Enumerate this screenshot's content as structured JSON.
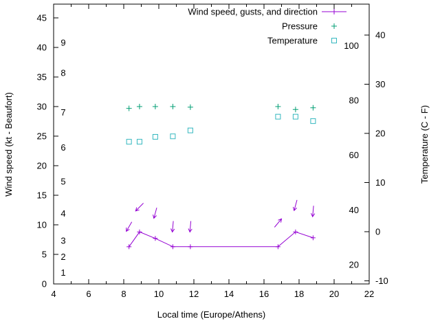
{
  "chart_data": {
    "type": "line",
    "title": "",
    "xlabel": "Local time (Europe/Athens)",
    "ylabel_left": "Wind speed (kt - Beaufort)",
    "ylabel_right": "Temperature (C - F)",
    "x_range": [
      4,
      22
    ],
    "x_ticks": [
      4,
      6,
      8,
      10,
      12,
      14,
      16,
      18,
      20,
      22
    ],
    "y_left_range": [
      0,
      47
    ],
    "y_left_ticks": [
      0,
      5,
      10,
      15,
      20,
      25,
      30,
      35,
      40,
      45
    ],
    "beaufort_labels": [
      {
        "label": "1",
        "kt": 1.9
      },
      {
        "label": "2",
        "kt": 4.6
      },
      {
        "label": "3",
        "kt": 7.3
      },
      {
        "label": "4",
        "kt": 11.9
      },
      {
        "label": "5",
        "kt": 17.3
      },
      {
        "label": "6",
        "kt": 23.1
      },
      {
        "label": "7",
        "kt": 29.0
      },
      {
        "label": "8",
        "kt": 35.7
      },
      {
        "label": "9",
        "kt": 40.8
      }
    ],
    "y_right_range_c": [
      -10,
      40
    ],
    "y_right_ticks_c": [
      -10,
      0,
      10,
      20,
      30,
      40
    ],
    "fahrenheit_labels": [
      {
        "label": "20",
        "c": -6.7
      },
      {
        "label": "40",
        "c": 4.4
      },
      {
        "label": "60",
        "c": 15.6
      },
      {
        "label": "80",
        "c": 26.7
      },
      {
        "label": "100",
        "c": 37.8
      }
    ],
    "colors": {
      "wind": "#9400d3",
      "pressure": "#009e73",
      "temperature": "#33b7bf",
      "axis": "#000000"
    },
    "legend": [
      {
        "label": "Wind speed, gusts, and direction",
        "color": "#9400d3",
        "marker": "plus-line"
      },
      {
        "label": "Pressure",
        "color": "#009e73",
        "marker": "plus"
      },
      {
        "label": "Temperature",
        "color": "#33b7bf",
        "marker": "square"
      }
    ],
    "series": {
      "wind": {
        "x": [
          8.3,
          8.9,
          9.8,
          10.8,
          11.8,
          16.8,
          17.8,
          18.8
        ],
        "kt": [
          6.3,
          8.8,
          7.7,
          6.3,
          6.3,
          6.3,
          8.8,
          7.8
        ]
      },
      "wind_arrows": [
        {
          "x": 8.3,
          "kt": 9.7,
          "dir_deg": 210
        },
        {
          "x": 8.9,
          "kt": 13.0,
          "dir_deg": 225
        },
        {
          "x": 9.8,
          "kt": 12.0,
          "dir_deg": 195
        },
        {
          "x": 10.8,
          "kt": 9.7,
          "dir_deg": 185
        },
        {
          "x": 11.8,
          "kt": 9.7,
          "dir_deg": 185
        },
        {
          "x": 16.8,
          "kt": 10.3,
          "dir_deg": 40
        },
        {
          "x": 17.8,
          "kt": 13.3,
          "dir_deg": 195
        },
        {
          "x": 18.8,
          "kt": 12.3,
          "dir_deg": 185
        }
      ],
      "pressure": {
        "x": [
          8.3,
          8.9,
          9.8,
          10.8,
          11.8,
          16.8,
          17.8,
          18.8
        ],
        "kt_equiv": [
          29.7,
          30.0,
          30.0,
          30.0,
          29.9,
          30.0,
          29.5,
          29.8
        ]
      },
      "temperature": {
        "x": [
          8.3,
          8.9,
          9.8,
          10.8,
          11.8,
          16.8,
          17.8,
          18.8
        ],
        "c": [
          18.3,
          18.3,
          19.3,
          19.4,
          20.6,
          23.4,
          23.4,
          22.5
        ]
      }
    }
  }
}
